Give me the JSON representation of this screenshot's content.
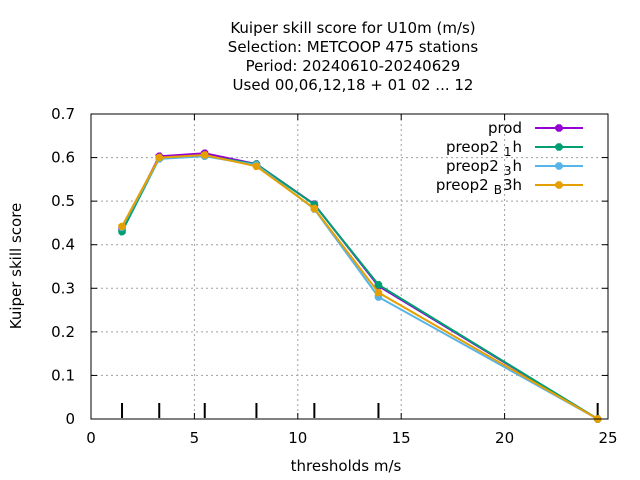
{
  "chart_data": {
    "type": "line",
    "title_lines": [
      "Kuiper skill score  for U10m (m/s)",
      "Selection: METCOOP    475 stations",
      "Period: 20240610-20240629",
      "Used  00,06,12,18 + 01 02 ... 12"
    ],
    "xlabel": "thresholds m/s",
    "ylabel": "Kuiper skill score",
    "xlim": [
      0,
      25
    ],
    "ylim": [
      0,
      0.7
    ],
    "xticks": [
      0,
      5,
      10,
      15,
      20,
      25
    ],
    "yticks": [
      0,
      0.1,
      0.2,
      0.3,
      0.4,
      0.5,
      0.6,
      0.7
    ],
    "xtick_labels": [
      "0",
      "5",
      "10",
      "15",
      "20",
      "25"
    ],
    "ytick_labels": [
      "0",
      "0.1",
      "0.2",
      "0.3",
      "0.4",
      "0.5",
      "0.6",
      "0.7"
    ],
    "grid": true,
    "legend_position": "top-right",
    "threshold_marks": [
      1.5,
      3.3,
      5.5,
      8.0,
      10.8,
      13.9,
      24.5
    ],
    "series": [
      {
        "name": "prod",
        "legend_base": "prod",
        "legend_sub": "",
        "legend_tail": "",
        "color": "#9400d3",
        "x": [
          1.5,
          3.3,
          5.5,
          8.0,
          10.8,
          13.9,
          24.5
        ],
        "y": [
          0.435,
          0.603,
          0.61,
          0.585,
          0.493,
          0.305,
          0.0
        ]
      },
      {
        "name": "preop2 1 h",
        "legend_base": "preop2",
        "legend_sub": "1",
        "legend_tail": "h",
        "color": "#009e73",
        "x": [
          1.5,
          3.3,
          5.5,
          8.0,
          10.8,
          13.9,
          24.5
        ],
        "y": [
          0.43,
          0.598,
          0.604,
          0.585,
          0.492,
          0.308,
          0.0
        ]
      },
      {
        "name": "preop2 3 h",
        "legend_base": "preop2",
        "legend_sub": "3",
        "legend_tail": "h",
        "color": "#56b4e9",
        "x": [
          1.5,
          3.3,
          5.5,
          8.0,
          10.8,
          13.9,
          24.5
        ],
        "y": [
          0.44,
          0.597,
          0.603,
          0.583,
          0.482,
          0.28,
          0.0
        ]
      },
      {
        "name": "preop2 B 3h",
        "legend_base": "preop2",
        "legend_sub": "B",
        "legend_tail": "3h",
        "color": "#e69f00",
        "x": [
          1.5,
          3.3,
          5.5,
          8.0,
          10.8,
          13.9,
          24.5
        ],
        "y": [
          0.442,
          0.6,
          0.606,
          0.58,
          0.483,
          0.29,
          0.0
        ]
      }
    ]
  }
}
